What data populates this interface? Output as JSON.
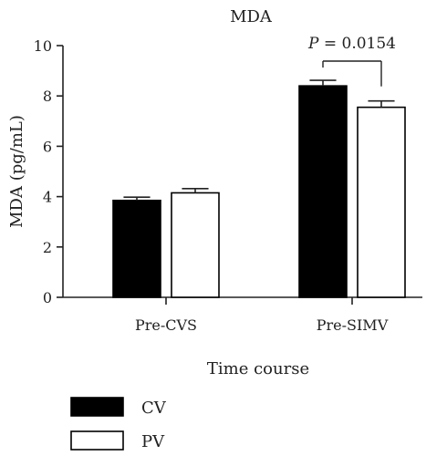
{
  "chart_data": {
    "type": "bar",
    "title": "MDA",
    "xlabel": "Time course",
    "ylabel": "MDA (pg/mL)",
    "ylim": [
      0,
      10
    ],
    "yticks": [
      0,
      2,
      4,
      6,
      8,
      10
    ],
    "categories": [
      "Pre-CVS",
      "Pre-SIMV"
    ],
    "series": [
      {
        "name": "CV",
        "values": [
          3.85,
          8.4
        ],
        "errors": [
          0.13,
          0.22
        ],
        "color": "#000000",
        "fill": "#000000"
      },
      {
        "name": "PV",
        "values": [
          4.15,
          7.55
        ],
        "errors": [
          0.17,
          0.25
        ],
        "color": "#000000",
        "fill": "#ffffff"
      }
    ],
    "annotations": [
      {
        "category": "Pre-SIMV",
        "label_prefix": "P",
        "label_suffix": " = 0.0154"
      }
    ],
    "legend": "bottom-left",
    "grid": false
  }
}
